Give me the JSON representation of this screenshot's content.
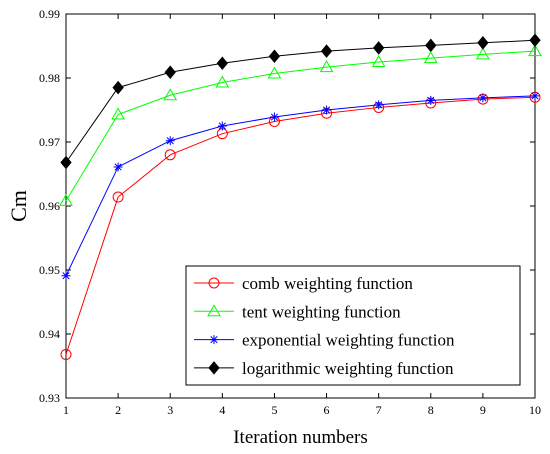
{
  "chart_data": {
    "type": "line",
    "title": "",
    "xlabel": "Iteration numbers",
    "ylabel": "Cm",
    "xlim": [
      1,
      10
    ],
    "ylim": [
      0.93,
      0.99
    ],
    "x": [
      1,
      2,
      3,
      4,
      5,
      6,
      7,
      8,
      9,
      10
    ],
    "x_ticks": [
      "1",
      "2",
      "3",
      "4",
      "5",
      "6",
      "7",
      "8",
      "9",
      "10"
    ],
    "y_ticks": [
      0.93,
      0.94,
      0.95,
      0.96,
      0.97,
      0.98,
      0.99
    ],
    "grid": false,
    "legend_position": "bottom-right",
    "series": [
      {
        "name": "comb weighting function",
        "color": "#ff0000",
        "marker": "circle",
        "values": [
          0.9368,
          0.9614,
          0.968,
          0.9713,
          0.9732,
          0.9745,
          0.9754,
          0.9761,
          0.9767,
          0.977
        ]
      },
      {
        "name": "tent weighting function",
        "color": "#00ff00",
        "marker": "triangle",
        "values": [
          0.9608,
          0.9743,
          0.9773,
          0.9793,
          0.9807,
          0.9817,
          0.9825,
          0.9831,
          0.9837,
          0.9842
        ]
      },
      {
        "name": "exponential weighting function",
        "color": "#0000ff",
        "marker": "asterisk",
        "values": [
          0.9491,
          0.9661,
          0.9702,
          0.9725,
          0.9739,
          0.975,
          0.9758,
          0.9765,
          0.9769,
          0.9772
        ]
      },
      {
        "name": "logarithmic weighting function",
        "color": "#000000",
        "marker": "diamond",
        "values": [
          0.9668,
          0.9785,
          0.9809,
          0.9823,
          0.9834,
          0.9842,
          0.9847,
          0.9851,
          0.9855,
          0.9859
        ]
      }
    ]
  }
}
